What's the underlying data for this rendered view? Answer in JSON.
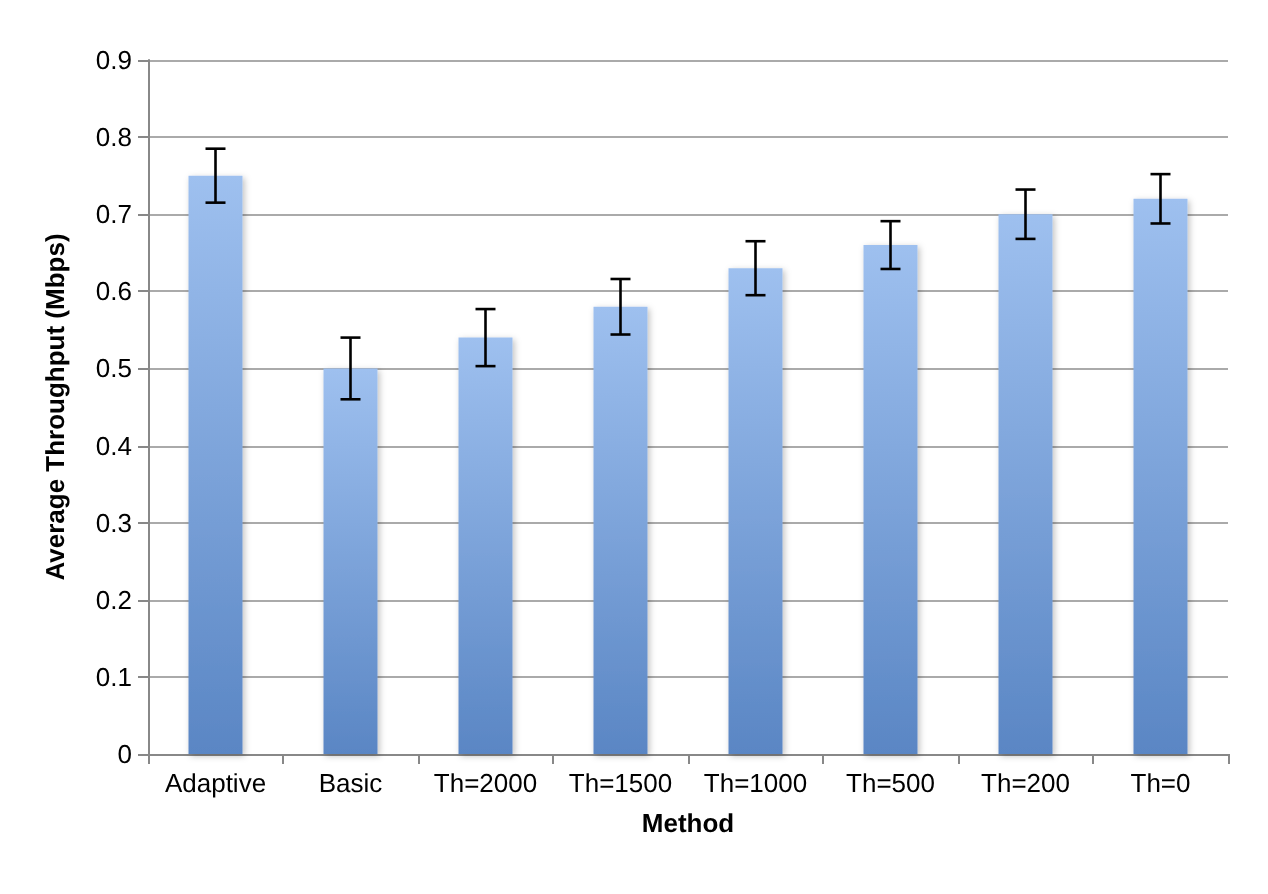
{
  "chart_data": {
    "type": "bar",
    "xlabel": "Method",
    "ylabel": "Average Throughput (Mbps)",
    "categories": [
      "Adaptive",
      "Basic",
      "Th=2000",
      "Th=1500",
      "Th=1000",
      "Th=500",
      "Th=200",
      "Th=0"
    ],
    "values": [
      0.75,
      0.5,
      0.54,
      0.58,
      0.63,
      0.66,
      0.7,
      0.72
    ],
    "errors": [
      0.035,
      0.04,
      0.037,
      0.036,
      0.035,
      0.031,
      0.032,
      0.032
    ],
    "color": "#6a9ee6",
    "ylim": [
      0,
      0.9
    ],
    "yticks": [
      0,
      0.1,
      0.2,
      0.3,
      0.4,
      0.5,
      0.6,
      0.7,
      0.8,
      0.9
    ],
    "grid": "y"
  }
}
